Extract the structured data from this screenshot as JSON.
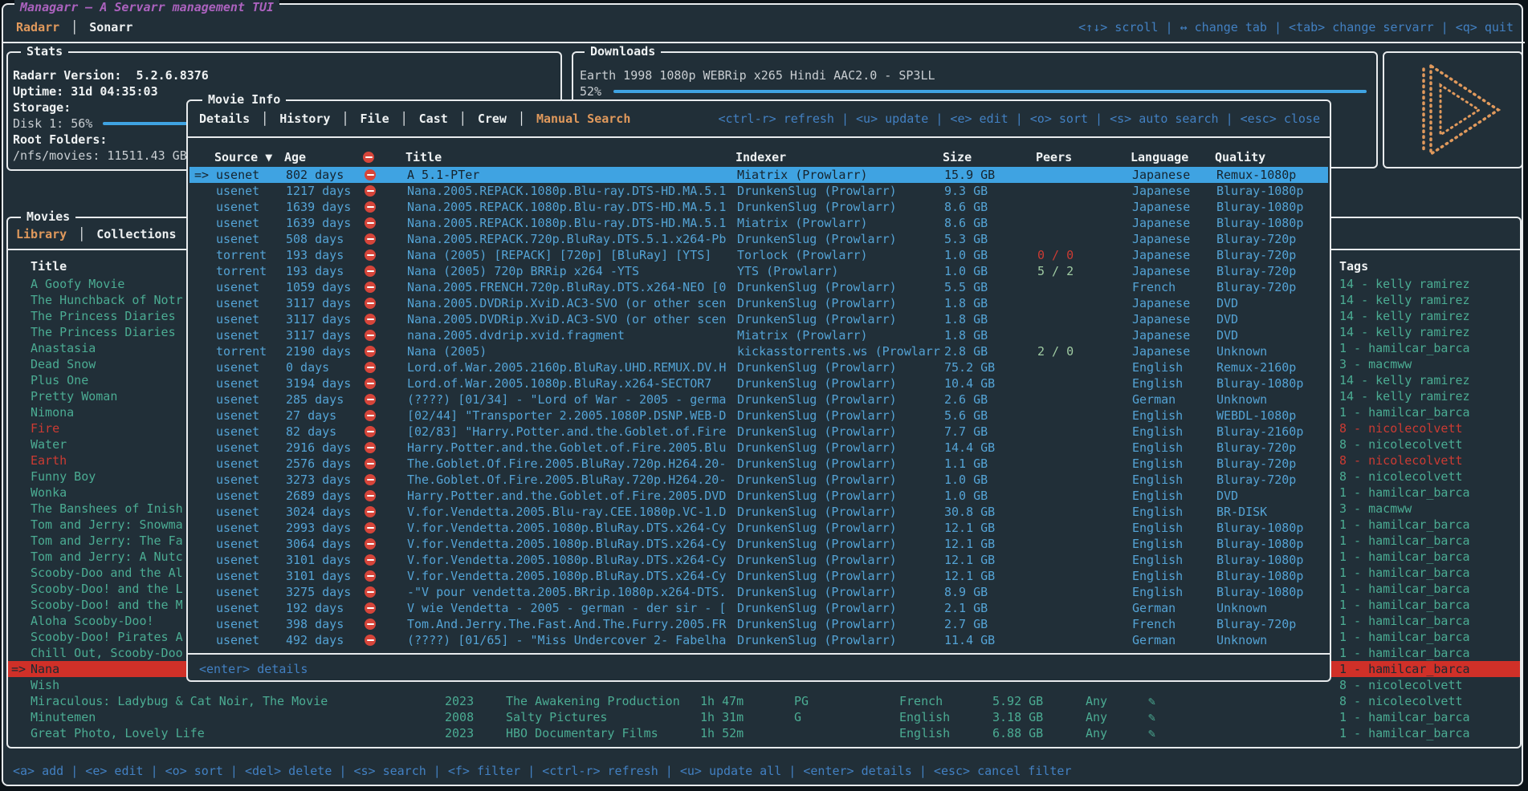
{
  "colors": {
    "background": "#212f38",
    "border": "#e8ebed",
    "accent_blue": "#4280c2",
    "accent_orange": "#e0995c",
    "accent_magenta": "#ab62be",
    "table_blue": "#54a3d5",
    "selection_blue": "#3fa3e2",
    "list_green": "#4bac93",
    "alert_red": "#cb3b33",
    "selection_red": "#d03028"
  },
  "app": {
    "title": "Managarr – A Servarr management TUI",
    "tabs": [
      {
        "label": "Radarr",
        "active": true
      },
      {
        "label": "Sonarr",
        "active": false
      }
    ],
    "keybindings": "<↑↓> scroll | ↔ change tab | <tab> change servarr | <q> quit"
  },
  "stats": {
    "title": "Stats",
    "version_line": "Radarr Version:  5.2.6.8376",
    "uptime_line": "Uptime: 31d 04:35:03",
    "storage_label": "Storage:",
    "disk_line": "Disk 1: 56%",
    "disk_percent": 56,
    "root_folders_label": "Root Folders:",
    "root_folder_line": "/nfs/movies: 11511.43 GB"
  },
  "downloads": {
    "title": "Downloads",
    "release": "Earth 1998 1080p WEBRip x265 Hindi AAC2.0 - SP3LL",
    "percent_label": "52%",
    "percent": 52
  },
  "movies": {
    "title": "Movies",
    "tabs": [
      {
        "label": "Library",
        "active": true
      },
      {
        "label": "Collections",
        "active": false
      }
    ],
    "column_title": "Title",
    "tags_title": "Tags",
    "items": [
      {
        "title": "A Goofy Movie",
        "tag": {
          "label": "14 - kelly ramirez"
        }
      },
      {
        "title": "The Hunchback of Notr",
        "tag": {
          "label": "14 - kelly ramirez"
        }
      },
      {
        "title": "The Princess Diaries",
        "tag": {
          "label": "14 - kelly ramirez"
        }
      },
      {
        "title": "The Princess Diaries",
        "tag": {
          "label": "14 - kelly ramirez"
        }
      },
      {
        "title": "Anastasia",
        "tag": {
          "label": "1 - hamilcar_barca"
        }
      },
      {
        "title": "Dead Snow",
        "tag": {
          "label": "3 - macmww"
        }
      },
      {
        "title": "Plus One",
        "tag": {
          "label": "14 - kelly ramirez"
        }
      },
      {
        "title": "Pretty Woman",
        "tag": {
          "label": "14 - kelly ramirez"
        }
      },
      {
        "title": "Nimona",
        "tag": {
          "label": "1 - hamilcar_barca"
        }
      },
      {
        "title": "Fire",
        "red": true,
        "tag": {
          "label": "8 - nicolecolvett",
          "red": true
        }
      },
      {
        "title": "Water",
        "tag": {
          "label": "8 - nicolecolvett"
        }
      },
      {
        "title": "Earth",
        "red": true,
        "tag": {
          "label": "8 - nicolecolvett",
          "red": true
        }
      },
      {
        "title": "Funny Boy",
        "tag": {
          "label": "8 - nicolecolvett"
        }
      },
      {
        "title": "Wonka",
        "tag": {
          "label": "1 - hamilcar_barca"
        }
      },
      {
        "title": "The Banshees of Inish",
        "tag": {
          "label": "3 - macmww"
        }
      },
      {
        "title": "Tom and Jerry: Snowma",
        "tag": {
          "label": "1 - hamilcar_barca"
        }
      },
      {
        "title": "Tom and Jerry: The Fa",
        "tag": {
          "label": "1 - hamilcar_barca"
        }
      },
      {
        "title": "Tom and Jerry: A Nutc",
        "tag": {
          "label": "1 - hamilcar_barca"
        }
      },
      {
        "title": "Scooby-Doo and the Al",
        "tag": {
          "label": "1 - hamilcar_barca"
        }
      },
      {
        "title": "Scooby-Doo! and the L",
        "tag": {
          "label": "1 - hamilcar_barca"
        }
      },
      {
        "title": "Scooby-Doo! and the M",
        "tag": {
          "label": "1 - hamilcar_barca"
        }
      },
      {
        "title": "Aloha Scooby-Doo!",
        "tag": {
          "label": "1 - hamilcar_barca"
        }
      },
      {
        "title": "Scooby-Doo! Pirates A",
        "tag": {
          "label": "1 - hamilcar_barca"
        }
      },
      {
        "title": "Chill Out, Scooby-Doo",
        "tag": {
          "label": "1 - hamilcar_barca"
        }
      },
      {
        "title": "Nana",
        "selected": true,
        "prefix": "=>",
        "tag": {
          "label": "1 - hamilcar_barca"
        }
      },
      {
        "title": "Wish",
        "tag": {
          "label": "8 - nicolecolvett"
        }
      },
      {
        "title": "Miraculous: Ladybug & Cat Noir, The Movie",
        "year": "2023",
        "studio": "The Awakening Production",
        "runtime": "1h 47m",
        "rating": "PG",
        "language": "French",
        "size": "5.92 GB",
        "availability": "Any",
        "monitored": "✎",
        "tag": {
          "label": "8 - nicolecolvett"
        }
      },
      {
        "title": "Minutemen",
        "year": "2008",
        "studio": "Salty Pictures",
        "runtime": "1h 31m",
        "rating": "G",
        "language": "English",
        "size": "3.18 GB",
        "availability": "Any",
        "monitored": "✎",
        "tag": {
          "label": "1 - hamilcar_barca"
        }
      },
      {
        "title": "Great Photo, Lovely Life",
        "year": "2023",
        "studio": "HBO Documentary Films",
        "runtime": "1h 52m",
        "rating": "",
        "language": "English",
        "size": "6.88 GB",
        "availability": "Any",
        "monitored": "✎",
        "tag": {
          "label": "1 - hamilcar_barca"
        }
      }
    ],
    "footer_keybindings": "<a> add | <e> edit | <o> sort | <del> delete | <s> search | <f> filter | <ctrl-r> refresh | <u> update all | <enter> details | <esc> cancel filter"
  },
  "modal": {
    "title": "Movie Info",
    "tabs": [
      {
        "label": "Details"
      },
      {
        "label": "History"
      },
      {
        "label": "File"
      },
      {
        "label": "Cast"
      },
      {
        "label": "Crew"
      },
      {
        "label": "Manual Search",
        "active": true
      }
    ],
    "keybindings": "<ctrl-r> refresh | <u> update | <e> edit | <o> sort | <s> auto search | <esc> close",
    "columns": [
      "Source ▼",
      "Age",
      "Title",
      "Indexer",
      "Size",
      "Peers",
      "Language",
      "Quality"
    ],
    "rows": [
      {
        "selected": true,
        "prefix": "=>",
        "source": "usenet",
        "age": "802 days",
        "title": "A 5.1-PTer",
        "indexer": "Miatrix (Prowlarr)",
        "size": "15.9 GB",
        "peers": "",
        "language": "Japanese",
        "quality": "Remux-1080p"
      },
      {
        "source": "usenet",
        "age": "1217 days",
        "title": "Nana.2005.REPACK.1080p.Blu-ray.DTS-HD.MA.5.1",
        "indexer": "DrunkenSlug (Prowlarr)",
        "size": "9.3 GB",
        "peers": "",
        "language": "Japanese",
        "quality": "Bluray-1080p"
      },
      {
        "source": "usenet",
        "age": "1639 days",
        "title": "Nana.2005.REPACK.1080p.Blu-ray.DTS-HD.MA.5.1",
        "indexer": "DrunkenSlug (Prowlarr)",
        "size": "8.6 GB",
        "peers": "",
        "language": "Japanese",
        "quality": "Bluray-1080p"
      },
      {
        "source": "usenet",
        "age": "1639 days",
        "title": "Nana.2005.REPACK.1080p.Blu-ray.DTS-HD.MA.5.1",
        "indexer": "Miatrix (Prowlarr)",
        "size": "8.6 GB",
        "peers": "",
        "language": "Japanese",
        "quality": "Bluray-1080p"
      },
      {
        "source": "usenet",
        "age": "508 days",
        "title": "Nana.2005.REPACK.720p.BluRay.DTS.5.1.x264-Pb",
        "indexer": "DrunkenSlug (Prowlarr)",
        "size": "5.3 GB",
        "peers": "",
        "language": "Japanese",
        "quality": "Bluray-720p"
      },
      {
        "source": "torrent",
        "age": "193 days",
        "title": "Nana (2005) [REPACK] [720p] [BluRay] [YTS]",
        "indexer": "Torlock (Prowlarr)",
        "size": "1.0 GB",
        "peers": "0 / 0",
        "peers_color": "red",
        "language": "Japanese",
        "quality": "Bluray-720p"
      },
      {
        "source": "torrent",
        "age": "193 days",
        "title": "Nana (2005) 720p BRRip x264 -YTS",
        "indexer": "YTS (Prowlarr)",
        "size": "1.0 GB",
        "peers": "5 / 2",
        "peers_color": "green",
        "language": "Japanese",
        "quality": "Bluray-720p"
      },
      {
        "source": "usenet",
        "age": "1059 days",
        "title": "Nana.2005.FRENCH.720p.BluRay.DTS.x264-NEO [0",
        "indexer": "DrunkenSlug (Prowlarr)",
        "size": "5.5 GB",
        "peers": "",
        "language": "French",
        "quality": "Bluray-720p"
      },
      {
        "source": "usenet",
        "age": "3117 days",
        "title": "Nana.2005.DVDRip.XviD.AC3-SVO (or other scen",
        "indexer": "DrunkenSlug (Prowlarr)",
        "size": "1.8 GB",
        "peers": "",
        "language": "Japanese",
        "quality": "DVD"
      },
      {
        "source": "usenet",
        "age": "3117 days",
        "title": "Nana.2005.DVDRip.XviD.AC3-SVO (or other scen",
        "indexer": "DrunkenSlug (Prowlarr)",
        "size": "1.8 GB",
        "peers": "",
        "language": "Japanese",
        "quality": "DVD"
      },
      {
        "source": "usenet",
        "age": "3117 days",
        "title": "nana.2005.dvdrip.xvid.fragment",
        "indexer": "Miatrix (Prowlarr)",
        "size": "1.8 GB",
        "peers": "",
        "language": "Japanese",
        "quality": "DVD"
      },
      {
        "source": "torrent",
        "age": "2190 days",
        "title": "Nana (2005)",
        "indexer": "kickasstorrents.ws (Prowlarr",
        "size": "2.8 GB",
        "peers": "2 / 0",
        "peers_color": "green",
        "language": "Japanese",
        "quality": "Unknown"
      },
      {
        "source": "usenet",
        "age": "0 days",
        "title": "Lord.of.War.2005.2160p.BluRay.UHD.REMUX.DV.H",
        "indexer": "DrunkenSlug (Prowlarr)",
        "size": "75.2 GB",
        "peers": "",
        "language": "English",
        "quality": "Remux-2160p"
      },
      {
        "source": "usenet",
        "age": "3194 days",
        "title": "Lord.of.War.2005.1080p.BluRay.x264-SECTOR7",
        "indexer": "DrunkenSlug (Prowlarr)",
        "size": "10.4 GB",
        "peers": "",
        "language": "English",
        "quality": "Bluray-1080p"
      },
      {
        "source": "usenet",
        "age": "285 days",
        "title": "(????) [01/34] - \"Lord of War - 2005 - germa",
        "indexer": "DrunkenSlug (Prowlarr)",
        "size": "2.6 GB",
        "peers": "",
        "language": "German",
        "quality": "Unknown"
      },
      {
        "source": "usenet",
        "age": "27 days",
        "title": "[02/44] \"Transporter 2.2005.1080P.DSNP.WEB-D",
        "indexer": "DrunkenSlug (Prowlarr)",
        "size": "5.6 GB",
        "peers": "",
        "language": "English",
        "quality": "WEBDL-1080p"
      },
      {
        "source": "usenet",
        "age": "82 days",
        "title": "[02/83] \"Harry.Potter.and.the.Goblet.of.Fire",
        "indexer": "DrunkenSlug (Prowlarr)",
        "size": "7.7 GB",
        "peers": "",
        "language": "English",
        "quality": "Bluray-2160p"
      },
      {
        "source": "usenet",
        "age": "2916 days",
        "title": "Harry.Potter.and.the.Goblet.of.Fire.2005.Blu",
        "indexer": "DrunkenSlug (Prowlarr)",
        "size": "14.4 GB",
        "peers": "",
        "language": "English",
        "quality": "Bluray-720p"
      },
      {
        "source": "usenet",
        "age": "2576 days",
        "title": "The.Goblet.Of.Fire.2005.BluRay.720p.H264.20-",
        "indexer": "DrunkenSlug (Prowlarr)",
        "size": "1.1 GB",
        "peers": "",
        "language": "English",
        "quality": "Bluray-720p"
      },
      {
        "source": "usenet",
        "age": "3273 days",
        "title": "The.Goblet.Of.Fire.2005.BluRay.720p.H264.20-",
        "indexer": "DrunkenSlug (Prowlarr)",
        "size": "1.0 GB",
        "peers": "",
        "language": "English",
        "quality": "Bluray-720p"
      },
      {
        "source": "usenet",
        "age": "2689 days",
        "title": "Harry.Potter.and.the.Goblet.of.Fire.2005.DVD",
        "indexer": "DrunkenSlug (Prowlarr)",
        "size": "1.0 GB",
        "peers": "",
        "language": "English",
        "quality": "DVD"
      },
      {
        "source": "usenet",
        "age": "3024 days",
        "title": "V.for.Vendetta.2005.Blu-ray.CEE.1080p.VC-1.D",
        "indexer": "DrunkenSlug (Prowlarr)",
        "size": "30.8 GB",
        "peers": "",
        "language": "English",
        "quality": "BR-DISK"
      },
      {
        "source": "usenet",
        "age": "2993 days",
        "title": "V.for.Vendetta.2005.1080p.BluRay.DTS.x264-Cy",
        "indexer": "DrunkenSlug (Prowlarr)",
        "size": "12.1 GB",
        "peers": "",
        "language": "English",
        "quality": "Bluray-1080p"
      },
      {
        "source": "usenet",
        "age": "3064 days",
        "title": "V.for.Vendetta.2005.1080p.BluRay.DTS.x264-Cy",
        "indexer": "DrunkenSlug (Prowlarr)",
        "size": "12.1 GB",
        "peers": "",
        "language": "English",
        "quality": "Bluray-1080p"
      },
      {
        "source": "usenet",
        "age": "3101 days",
        "title": "V.for.Vendetta.2005.1080p.BluRay.DTS.x264-Cy",
        "indexer": "DrunkenSlug (Prowlarr)",
        "size": "12.1 GB",
        "peers": "",
        "language": "English",
        "quality": "Bluray-1080p"
      },
      {
        "source": "usenet",
        "age": "3101 days",
        "title": "V.for.Vendetta.2005.1080p.BluRay.DTS.x264-Cy",
        "indexer": "DrunkenSlug (Prowlarr)",
        "size": "12.1 GB",
        "peers": "",
        "language": "English",
        "quality": "Bluray-1080p"
      },
      {
        "source": "usenet",
        "age": "3275 days",
        "title": "-\"V pour vendetta.2005.BRrip.1080p.x264-DTS.",
        "indexer": "DrunkenSlug (Prowlarr)",
        "size": "8.9 GB",
        "peers": "",
        "language": "English",
        "quality": "Bluray-1080p"
      },
      {
        "source": "usenet",
        "age": "192 days",
        "title": "V wie Vendetta - 2005 - german - der sir - [",
        "indexer": "DrunkenSlug (Prowlarr)",
        "size": "2.1 GB",
        "peers": "",
        "language": "German",
        "quality": "Unknown"
      },
      {
        "source": "usenet",
        "age": "398 days",
        "title": "Tom.And.Jerry.The.Fast.And.The.Furry.2005.FR",
        "indexer": "DrunkenSlug (Prowlarr)",
        "size": "2.7 GB",
        "peers": "",
        "language": "French",
        "quality": "Bluray-720p"
      },
      {
        "source": "usenet",
        "age": "492 days",
        "title": "(????) [01/65] - \"Miss Undercover 2- Fabelha",
        "indexer": "DrunkenSlug (Prowlarr)",
        "size": "11.4 GB",
        "peers": "",
        "language": "German",
        "quality": "Unknown"
      }
    ],
    "footer": "<enter> details"
  }
}
